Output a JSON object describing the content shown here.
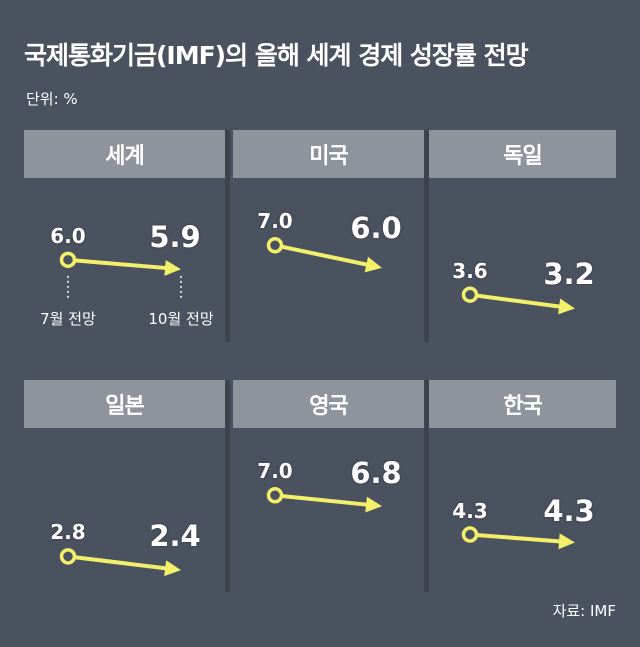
{
  "title": "국제통화기금(IMF)의 올해 세계 경제 성장률 전망",
  "unit_label": "단위: %",
  "source": "자료: IMF",
  "colors": {
    "background": "#4a5260",
    "header": "#8e949b",
    "arrow": "#f2ef6a",
    "text": "#ffffff"
  },
  "chart_data": {
    "type": "slope",
    "periods": [
      "7월 전망",
      "10월 전망"
    ],
    "unit": "%",
    "series": [
      {
        "name": "세계",
        "values": [
          6.0,
          5.9
        ],
        "labels": [
          "6.0",
          "5.9"
        ]
      },
      {
        "name": "미국",
        "values": [
          7.0,
          6.0
        ],
        "labels": [
          "7.0",
          "6.0"
        ]
      },
      {
        "name": "독일",
        "values": [
          3.6,
          3.2
        ],
        "labels": [
          "3.6",
          "3.2"
        ]
      },
      {
        "name": "일본",
        "values": [
          2.8,
          2.4
        ],
        "labels": [
          "2.8",
          "2.4"
        ]
      },
      {
        "name": "영국",
        "values": [
          7.0,
          6.8
        ],
        "labels": [
          "7.0",
          "6.8"
        ]
      },
      {
        "name": "한국",
        "values": [
          4.3,
          4.3
        ],
        "labels": [
          "4.3",
          "4.3"
        ]
      }
    ]
  }
}
